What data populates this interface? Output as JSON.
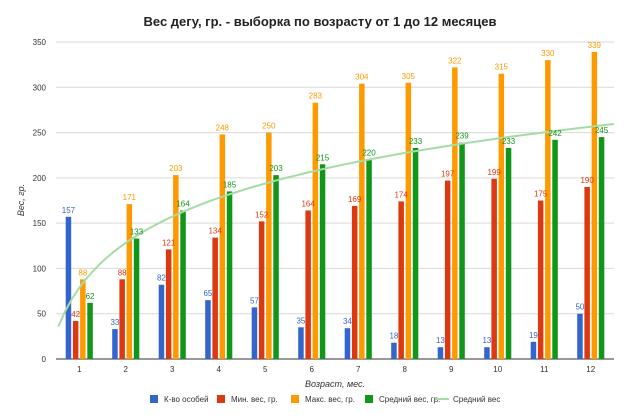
{
  "chart_data": {
    "type": "bar",
    "title": "Вес дегу, гр. - выборка по возрасту от 1 до 12 месяцев",
    "xlabel": "Возраст, мес.",
    "ylabel": "Вес, гр.",
    "ylim": [
      0,
      350
    ],
    "yticks": [
      "0",
      "50",
      "100",
      "150",
      "200",
      "250",
      "300",
      "350"
    ],
    "categories": [
      "1",
      "2",
      "3",
      "4",
      "5",
      "6",
      "7",
      "8",
      "9",
      "10",
      "11",
      "12"
    ],
    "series": [
      {
        "name": "К-во особей",
        "color": "#3366cc",
        "values": [
          157,
          33,
          82,
          65,
          57,
          35,
          34,
          18,
          13,
          13,
          19,
          50
        ]
      },
      {
        "name": "Мин. вес, гр.",
        "color": "#dc3912",
        "values": [
          42,
          88,
          121,
          134,
          152,
          164,
          169,
          174,
          197,
          199,
          175,
          190
        ]
      },
      {
        "name": "Макс. вес, гр.",
        "color": "#ff9900",
        "values": [
          88,
          171,
          203,
          248,
          250,
          283,
          304,
          305,
          322,
          315,
          330,
          339
        ]
      },
      {
        "name": "Средний вес, гр.",
        "color": "#109618",
        "values": [
          62,
          133,
          164,
          185,
          203,
          215,
          220,
          233,
          239,
          233,
          242,
          245
        ]
      }
    ],
    "trendline": {
      "name": "Средний вес",
      "color": "#a6dba6",
      "type": "logarithmic"
    },
    "legend_position": "bottom"
  }
}
